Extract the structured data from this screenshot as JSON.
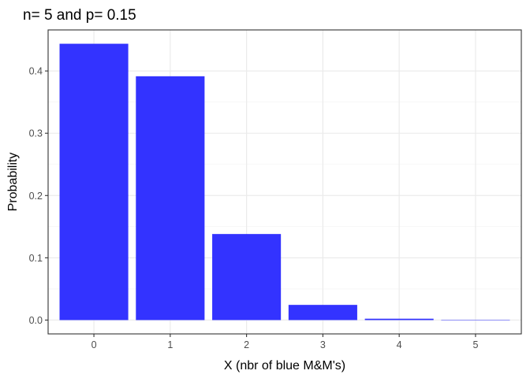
{
  "chart_data": {
    "type": "bar",
    "title": "n= 5 and p= 0.15",
    "xlabel": "X (nbr of blue M&M's)",
    "ylabel": "Probability",
    "categories": [
      "0",
      "1",
      "2",
      "3",
      "4",
      "5"
    ],
    "values": [
      0.4437,
      0.3915,
      0.1382,
      0.0244,
      0.0022,
      0.0001
    ],
    "ylim": [
      -0.0222,
      0.4659
    ],
    "yticks": [
      0.0,
      0.1,
      0.2,
      0.3,
      0.4
    ],
    "ytick_labels": [
      "0.0",
      "0.1",
      "0.2",
      "0.3",
      "0.4"
    ],
    "bar_color": "#3333FF",
    "grid": true,
    "legend": false
  }
}
